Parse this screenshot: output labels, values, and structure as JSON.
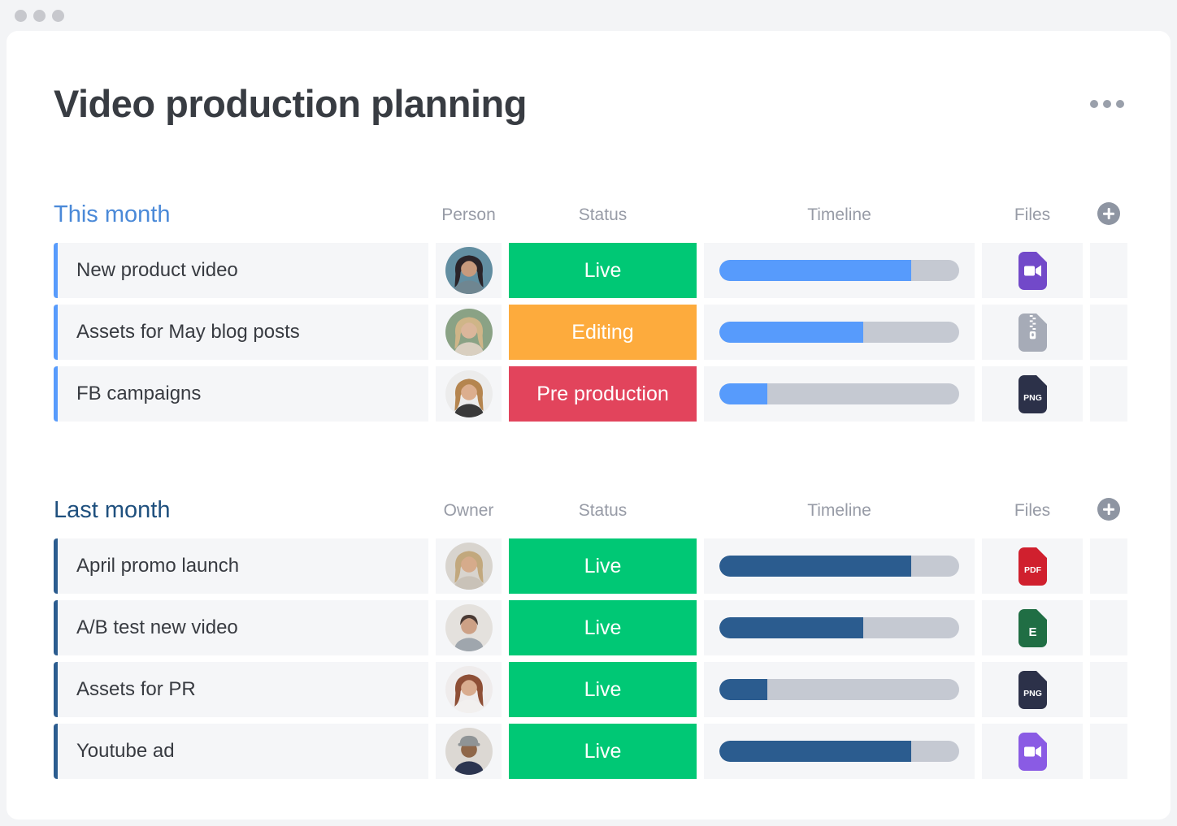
{
  "board": {
    "title": "Video production planning"
  },
  "palette": {
    "row_background": "#f5f6f8",
    "timeline_track": "#c5c9d2",
    "badge_text": "#ffffff",
    "column_header_text": "#979ba6"
  },
  "icons": {
    "window_controls": "window-dot-icon",
    "board_menu": "ellipsis-icon",
    "add_column": "plus-icon"
  },
  "groups": [
    {
      "title": "This month",
      "title_color": "#4a89d8",
      "accent_color": "#579bfc",
      "progress_color": "#579bfc",
      "columns": {
        "person": "Person",
        "status": "Status",
        "timeline": "Timeline",
        "files": "Files"
      },
      "rows": [
        {
          "name": "New product video",
          "status": {
            "label": "Live",
            "color": "#00c875"
          },
          "timeline_percent": 80,
          "file": {
            "type": "video",
            "color": "#7249c9",
            "icon": "video-file-icon"
          },
          "avatar": {
            "bg": "#628ea1",
            "hair": "#2a2429",
            "skin": "#c79a7d",
            "shirt": "#6f8691",
            "long_hair": true,
            "cap": false
          }
        },
        {
          "name": "Assets for May blog posts",
          "status": {
            "label": "Editing",
            "color": "#fdab3d"
          },
          "timeline_percent": 60,
          "file": {
            "type": "zip",
            "color": "#a6abb7",
            "icon": "zip-file-icon"
          },
          "avatar": {
            "bg": "#8aa285",
            "hair": "#cfb588",
            "skin": "#dbb69b",
            "shirt": "#d9cfc0",
            "long_hair": true,
            "cap": false
          }
        },
        {
          "name": "FB campaigns",
          "status": {
            "label": "Pre production",
            "color": "#e2445c"
          },
          "timeline_percent": 20,
          "file": {
            "type": "image",
            "color": "#2c3149",
            "label": "PNG",
            "icon": "png-file-icon"
          },
          "avatar": {
            "bg": "#ececec",
            "hair": "#b5854f",
            "skin": "#dcae8e",
            "shirt": "#3a3a3a",
            "long_hair": true,
            "cap": false
          }
        }
      ]
    },
    {
      "title": "Last month",
      "title_color": "#1f507e",
      "accent_color": "#2b5c8f",
      "progress_color": "#2b5c8f",
      "columns": {
        "person": "Owner",
        "status": "Status",
        "timeline": "Timeline",
        "files": "Files"
      },
      "rows": [
        {
          "name": "April promo launch",
          "status": {
            "label": "Live",
            "color": "#00c875"
          },
          "timeline_percent": 80,
          "file": {
            "type": "pdf",
            "color": "#d0202e",
            "label": "PDF",
            "icon": "pdf-file-icon"
          },
          "avatar": {
            "bg": "#d8d4ce",
            "hair": "#c2a87d",
            "skin": "#d6ab8b",
            "shirt": "#c9c2b8",
            "long_hair": true,
            "cap": false
          }
        },
        {
          "name": "A/B test new video",
          "status": {
            "label": "Live",
            "color": "#00c875"
          },
          "timeline_percent": 60,
          "file": {
            "type": "spreadsheet",
            "color": "#206e44",
            "label": "E",
            "icon": "excel-file-icon"
          },
          "avatar": {
            "bg": "#e4e1dd",
            "hair": "#4a3a34",
            "skin": "#cda186",
            "shirt": "#9fa6ad",
            "long_hair": false,
            "cap": false
          }
        },
        {
          "name": "Assets for PR",
          "status": {
            "label": "Live",
            "color": "#00c875"
          },
          "timeline_percent": 20,
          "file": {
            "type": "image",
            "color": "#2c3149",
            "label": "PNG",
            "icon": "png-file-icon"
          },
          "avatar": {
            "bg": "#efecec",
            "hair": "#8e4f36",
            "skin": "#d9ac8f",
            "shirt": "#f2f0ef",
            "long_hair": true,
            "cap": false
          }
        },
        {
          "name": "Youtube ad",
          "status": {
            "label": "Live",
            "color": "#00c875"
          },
          "timeline_percent": 80,
          "file": {
            "type": "video",
            "color": "#8a5be4",
            "icon": "video-file-icon"
          },
          "avatar": {
            "bg": "#dcd8d3",
            "hair": "#8f9496",
            "skin": "#8f6749",
            "shirt": "#2c3550",
            "long_hair": false,
            "cap": true
          }
        }
      ]
    }
  ]
}
